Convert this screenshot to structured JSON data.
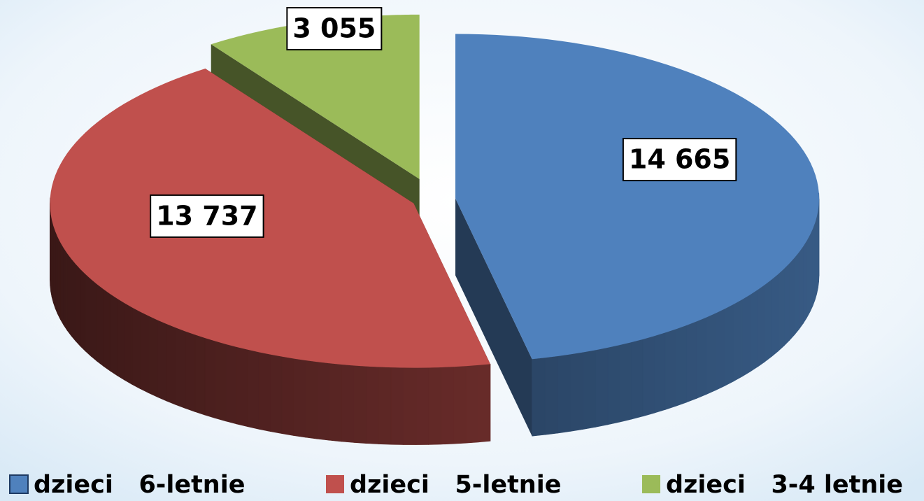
{
  "chart_data": {
    "type": "pie",
    "categories": [
      "dzieci   6-letnie",
      "dzieci   5-letnie",
      "dzieci   3-4 letnie"
    ],
    "values": [
      14665,
      13737,
      3055
    ],
    "value_labels": [
      "14 665",
      "13 737",
      "3 055"
    ],
    "colors": [
      "#4f81bd",
      "#c0504d",
      "#9bbb59"
    ],
    "legend": "bottom"
  }
}
